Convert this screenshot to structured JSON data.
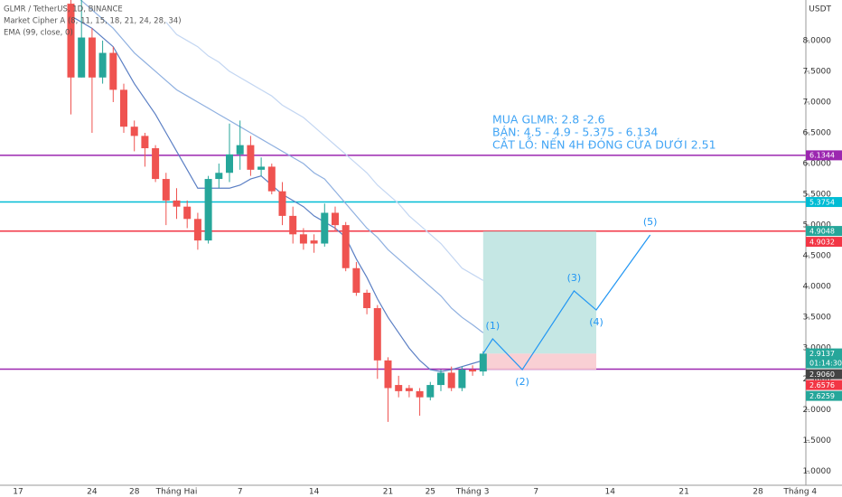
{
  "chart_data": {
    "type": "candlestick",
    "legend": [
      "GLMR / TetherUS, 1D, BINANCE",
      "Market Cipher A (8, 11, 15, 18, 21, 24, 28, 34)",
      "EMA (99, close, 0)"
    ],
    "y_unit": "USDT",
    "annotations": [
      "MUA GLMR: 2.8 -2.6",
      "BÁN: 4.5 - 4.9 - 5.375  - 6.134",
      "CẮT LỖ: NẾN 4H ĐÓNG CỬA DƯỚI 2.51"
    ],
    "categories": [
      "17",
      null,
      null,
      null,
      null,
      null,
      null,
      "24",
      null,
      null,
      null,
      "28",
      null,
      null,
      null,
      "Tháng Hai",
      null,
      null,
      null,
      null,
      null,
      "7",
      null,
      null,
      null,
      null,
      null,
      null,
      "14",
      null,
      null,
      null,
      null,
      null,
      null,
      "21",
      null,
      null,
      null,
      "25",
      null,
      null,
      null,
      "Tháng 3",
      null,
      null,
      null,
      null,
      null,
      "7",
      null,
      null,
      null,
      null,
      null,
      null,
      "14",
      null,
      null,
      null,
      null,
      null,
      null,
      "21",
      null,
      null,
      null,
      null,
      null,
      null,
      "28",
      null,
      null,
      null,
      "Tháng 4"
    ],
    "up_color": "#26a69a",
    "down_color": "#ef5350",
    "open": [
      null,
      null,
      null,
      null,
      null,
      8.6,
      7.4,
      8.05,
      7.4,
      7.8,
      7.2,
      6.6,
      6.45,
      6.25,
      5.75,
      5.4,
      5.3,
      5.1,
      4.75,
      5.75,
      5.85,
      6.15,
      6.3,
      5.9,
      5.95,
      5.55,
      5.15,
      4.85,
      4.75,
      4.7,
      5.2,
      5.0,
      4.3,
      3.9,
      3.65,
      2.8,
      2.4,
      2.35,
      2.3,
      2.2,
      2.4,
      2.6,
      2.35,
      2.65,
      2.62,
      null,
      null,
      null,
      null,
      null,
      null,
      null,
      null,
      null,
      null,
      null,
      null,
      null,
      null,
      null,
      null,
      null,
      null,
      null,
      null,
      null,
      null,
      null,
      null,
      null,
      null,
      null,
      null,
      null,
      null
    ],
    "high": [
      null,
      null,
      null,
      null,
      null,
      8.9,
      8.9,
      8.2,
      8.0,
      7.9,
      7.3,
      6.7,
      6.5,
      6.3,
      5.85,
      5.6,
      5.4,
      5.2,
      5.8,
      6.0,
      6.65,
      6.7,
      6.45,
      6.1,
      6.0,
      5.7,
      5.3,
      4.95,
      4.85,
      5.35,
      5.3,
      5.05,
      4.4,
      3.95,
      3.7,
      2.85,
      2.55,
      2.4,
      2.35,
      2.45,
      2.65,
      2.7,
      2.7,
      2.72,
      2.95,
      null,
      null,
      null,
      null,
      null,
      null,
      null,
      null,
      null,
      null,
      null,
      null,
      null,
      null,
      null,
      null,
      null,
      null,
      null,
      null,
      null,
      null,
      null,
      null,
      null,
      null,
      null,
      null,
      null,
      null
    ],
    "low": [
      null,
      null,
      null,
      null,
      null,
      6.8,
      7.4,
      6.5,
      7.3,
      7.0,
      6.5,
      6.2,
      5.95,
      5.7,
      5.0,
      5.1,
      4.95,
      4.6,
      4.7,
      5.6,
      5.7,
      5.9,
      5.8,
      5.8,
      5.5,
      5.0,
      4.7,
      4.6,
      4.55,
      4.65,
      4.9,
      4.25,
      3.85,
      3.55,
      2.5,
      1.8,
      2.2,
      2.2,
      1.9,
      2.15,
      2.3,
      2.3,
      2.3,
      2.55,
      2.55,
      null,
      null,
      null,
      null,
      null,
      null,
      null,
      null,
      null,
      null,
      null,
      null,
      null,
      null,
      null,
      null,
      null,
      null,
      null,
      null,
      null,
      null,
      null,
      null,
      null,
      null,
      null,
      null,
      null,
      null
    ],
    "close": [
      null,
      null,
      null,
      null,
      null,
      7.4,
      8.05,
      7.4,
      7.8,
      7.2,
      6.6,
      6.45,
      6.25,
      5.75,
      5.4,
      5.3,
      5.1,
      4.75,
      5.75,
      5.85,
      6.15,
      6.3,
      5.9,
      5.95,
      5.55,
      5.15,
      4.85,
      4.7,
      4.7,
      5.2,
      5.0,
      4.3,
      3.9,
      3.65,
      2.8,
      2.35,
      2.3,
      2.3,
      2.2,
      2.4,
      2.6,
      2.35,
      2.65,
      2.62,
      2.91,
      null,
      null,
      null,
      null,
      null,
      null,
      null,
      null,
      null,
      null,
      null,
      null,
      null,
      null,
      null,
      null,
      null,
      null,
      null,
      null,
      null,
      null,
      null,
      null,
      null,
      null,
      null,
      null,
      null,
      null
    ],
    "series": [
      {
        "color": "#5b7fc4",
        "values": [
          null,
          null,
          null,
          null,
          null,
          8.4,
          8.3,
          8.2,
          8.05,
          7.9,
          7.6,
          7.3,
          7.05,
          6.8,
          6.5,
          6.2,
          5.9,
          5.6,
          5.6,
          5.6,
          5.6,
          5.65,
          5.75,
          5.8,
          5.65,
          5.5,
          5.4,
          5.3,
          5.15,
          5.05,
          4.95,
          4.8,
          4.45,
          4.15,
          3.8,
          3.5,
          3.25,
          3.0,
          2.8,
          2.65,
          2.62,
          2.65,
          2.7,
          2.75,
          2.8,
          null,
          null,
          null,
          null,
          null,
          null,
          null,
          null,
          null,
          null,
          null,
          null,
          null,
          null,
          null,
          null,
          null,
          null,
          null,
          null,
          null,
          null,
          null,
          null,
          null,
          null,
          null,
          null,
          null,
          null
        ]
      },
      {
        "color": "#8fb0e0",
        "values": [
          null,
          null,
          null,
          null,
          null,
          8.8,
          8.65,
          8.5,
          8.35,
          8.2,
          8.0,
          7.8,
          7.65,
          7.5,
          7.35,
          7.2,
          7.1,
          7.0,
          6.9,
          6.8,
          6.7,
          6.6,
          6.5,
          6.4,
          6.3,
          6.2,
          6.1,
          6.0,
          5.85,
          5.75,
          5.55,
          5.35,
          5.15,
          4.95,
          4.8,
          4.6,
          4.45,
          4.3,
          4.15,
          4.0,
          3.85,
          3.65,
          3.5,
          3.38,
          3.25,
          null,
          null,
          null,
          null,
          null,
          null,
          null,
          null,
          null,
          null,
          null,
          null,
          null,
          null,
          null,
          null,
          null,
          null,
          null,
          null,
          null,
          null,
          null,
          null,
          null,
          null,
          null,
          null,
          null,
          null
        ]
      },
      {
        "color": "#c3d6f2",
        "values": [
          null,
          null,
          null,
          null,
          null,
          null,
          null,
          null,
          null,
          null,
          null,
          null,
          null,
          null,
          8.3,
          8.1,
          8.0,
          7.9,
          7.75,
          7.65,
          7.5,
          7.4,
          7.3,
          7.2,
          7.1,
          6.95,
          6.85,
          6.75,
          6.6,
          6.45,
          6.3,
          6.15,
          6.0,
          5.85,
          5.65,
          5.5,
          5.35,
          5.15,
          5.0,
          4.85,
          4.7,
          4.5,
          4.3,
          4.2,
          4.1,
          null,
          null,
          null,
          null,
          null,
          null,
          null,
          null,
          null,
          null,
          null,
          null,
          null,
          null,
          null,
          null,
          null,
          null,
          null,
          null,
          null,
          null,
          null,
          null,
          null,
          null,
          null,
          null,
          null,
          null
        ]
      }
    ],
    "hlines": [
      {
        "value": 6.1344,
        "color": "#9c27b0"
      },
      {
        "value": 5.3754,
        "color": "#00bcd4"
      },
      {
        "value": 4.9032,
        "color": "#f23645"
      },
      {
        "value": 2.6576,
        "color": "#9c27b0"
      }
    ],
    "price_labels": [
      {
        "value": 6.1344,
        "color": "#9c27b0"
      },
      {
        "value": 5.3754,
        "color": "#00bcd4"
      },
      {
        "value": 4.9048,
        "color": "#26a69a"
      },
      {
        "value": 4.9032,
        "color": "#f23645"
      },
      {
        "value": 2.9137,
        "color": "#26a69a",
        "countdown": "01:14:30"
      },
      {
        "value": 2.906,
        "label": "2.9060",
        "color": "#444"
      },
      {
        "value": 2.6576,
        "color": "#f23645"
      },
      {
        "value": 2.6259,
        "color": "#26a69a"
      }
    ],
    "position": {
      "entry": 2.91,
      "target": 4.9,
      "stop": 2.65,
      "x_start": 44,
      "x_end": 54.7,
      "profit_color": "#b2dfdb",
      "loss_color": "#f8c8cc"
    },
    "wave": {
      "color": "#2196f3",
      "points": [
        {
          "x": 44,
          "y": 2.91,
          "label": null
        },
        {
          "x": 44.9,
          "y": 3.15,
          "label": "(1)"
        },
        {
          "x": 47.7,
          "y": 2.65,
          "label": "(2)"
        },
        {
          "x": 52.6,
          "y": 3.93,
          "label": "(3)"
        },
        {
          "x": 54.7,
          "y": 3.62,
          "label": "(4)"
        },
        {
          "x": 59.8,
          "y": 4.84,
          "label": "(5)"
        }
      ]
    },
    "ylim": [
      0.77,
      8.66
    ],
    "yticks": [
      {
        "value": 1,
        "label": "1.0000"
      },
      {
        "value": 1.5,
        "label": "1.5000"
      },
      {
        "value": 2,
        "label": "2.0000"
      },
      {
        "value": 2.5,
        "label": "2.5000"
      },
      {
        "value": 3,
        "label": "3.0000"
      },
      {
        "value": 3.5,
        "label": "3.5000"
      },
      {
        "value": 4,
        "label": "4.0000"
      },
      {
        "value": 4.5,
        "label": "4.5000"
      },
      {
        "value": 5,
        "label": "5.0000"
      },
      {
        "value": 5.5,
        "label": "5.5000"
      },
      {
        "value": 6,
        "label": "6.0000"
      },
      {
        "value": 6.5,
        "label": "6.5000"
      },
      {
        "value": 7,
        "label": "7.0000"
      },
      {
        "value": 7.5,
        "label": "7.5000"
      },
      {
        "value": 8,
        "label": "8.0000"
      }
    ]
  }
}
